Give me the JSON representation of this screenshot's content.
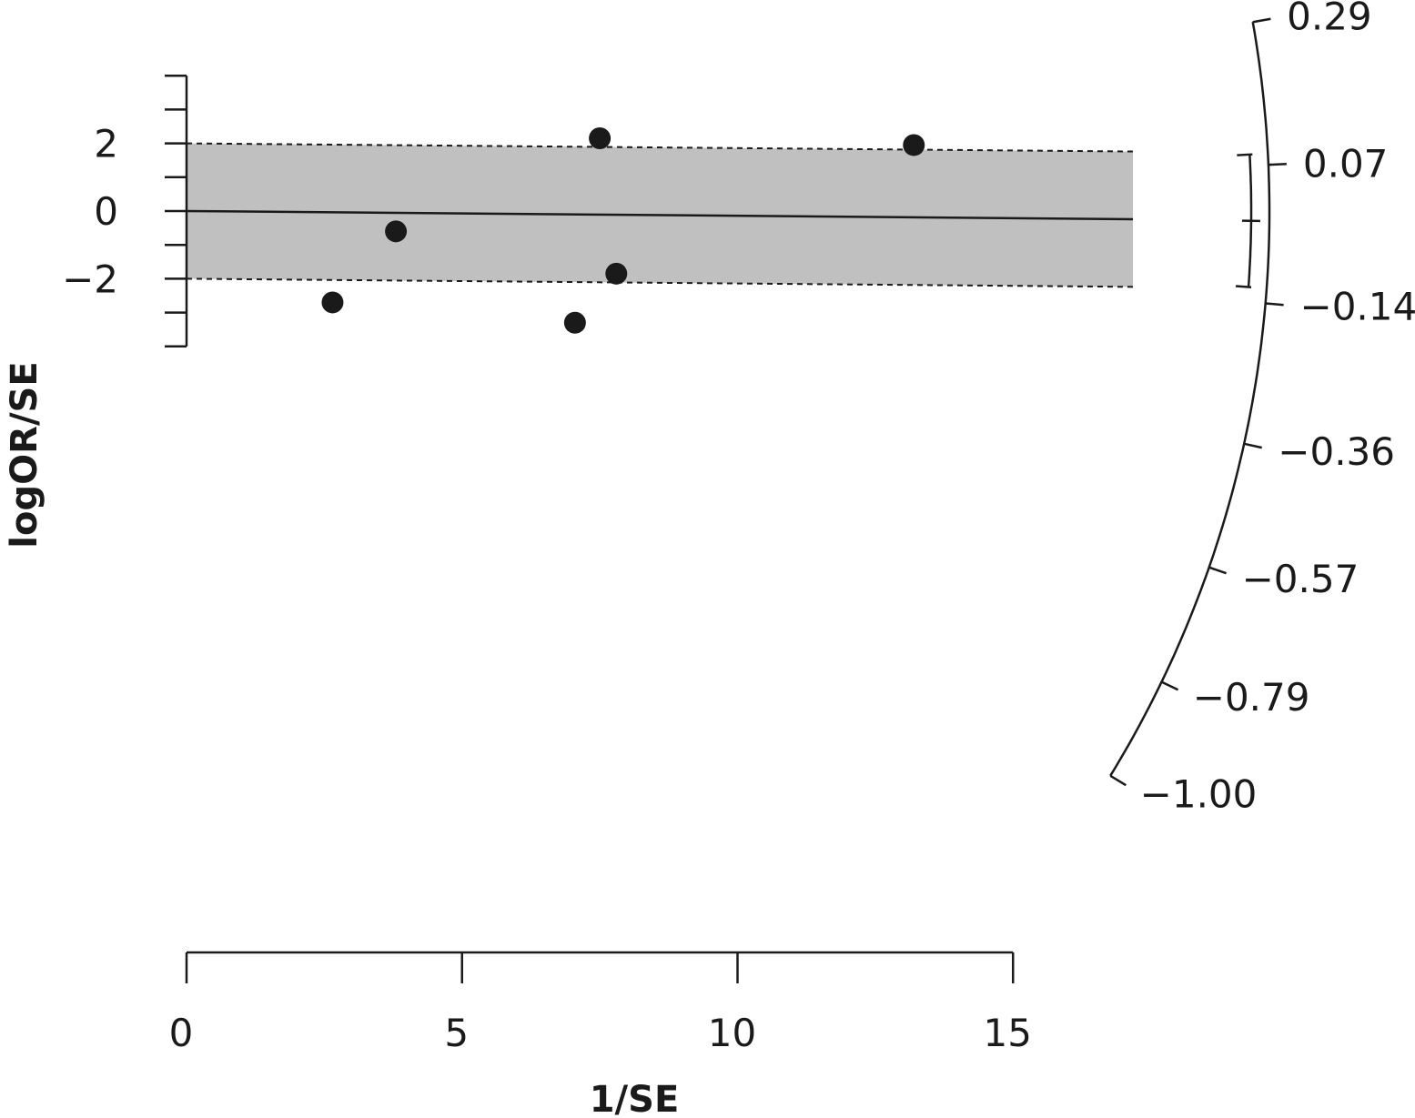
{
  "chart_data": {
    "type": "scatter",
    "subtype": "galbraith-radial-plot",
    "xlabel": "1/SE",
    "ylabel": "logOR/SE",
    "xlim": [
      0,
      15
    ],
    "x_ticks": [
      "0",
      "5",
      "10",
      "15"
    ],
    "ylim": [
      -4,
      4
    ],
    "y_ticks": [
      "2",
      "0",
      "−2"
    ],
    "points": [
      {
        "x": 2.65,
        "y": -2.7
      },
      {
        "x": 3.8,
        "y": -0.6
      },
      {
        "x": 7.05,
        "y": -3.3
      },
      {
        "x": 7.5,
        "y": 2.15
      },
      {
        "x": 7.8,
        "y": -1.85
      },
      {
        "x": 13.2,
        "y": 1.95
      }
    ],
    "regression_line": {
      "slope": -0.014,
      "intercept": 0
    },
    "confidence_band": {
      "halfwidth": 2
    },
    "radial_scale": {
      "tick_labels": [
        "0.29",
        "0.07",
        "−0.14",
        "−0.36",
        "−0.57",
        "−0.79",
        "−1.00"
      ],
      "estimate": -0.015,
      "ci": [
        -0.117,
        0.087
      ]
    },
    "grid": false,
    "legend": "none",
    "band_color": "#c0c0c0",
    "point_color": "#1a1a1a"
  }
}
